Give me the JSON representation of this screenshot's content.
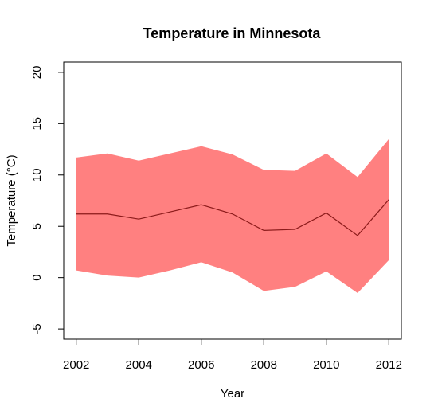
{
  "chart_data": {
    "type": "area",
    "title": "Temperature in Minnesota",
    "xlabel": "Year",
    "ylabel": "Temperature (°C)",
    "xlim": [
      2001.6,
      2012.4
    ],
    "ylim": [
      -6,
      21
    ],
    "x_ticks": [
      2002,
      2004,
      2006,
      2008,
      2010,
      2012
    ],
    "y_ticks": [
      -5,
      0,
      5,
      10,
      15,
      20
    ],
    "grid": false,
    "legend": "none",
    "x": [
      2002,
      2003,
      2004,
      2005,
      2006,
      2007,
      2008,
      2009,
      2010,
      2011,
      2012
    ],
    "series": [
      {
        "role": "band-upper",
        "values": [
          11.7,
          12.1,
          11.4,
          12.1,
          12.8,
          12.0,
          10.5,
          10.4,
          12.1,
          9.8,
          13.5
        ]
      },
      {
        "role": "band-lower",
        "values": [
          0.7,
          0.2,
          0.0,
          0.7,
          1.5,
          0.5,
          -1.3,
          -0.9,
          0.6,
          -1.5,
          1.7
        ]
      },
      {
        "role": "line",
        "values": [
          6.2,
          6.2,
          5.7,
          6.4,
          7.1,
          6.2,
          4.6,
          4.7,
          6.3,
          4.1,
          7.6
        ]
      }
    ],
    "colors": {
      "band": "#ff8080",
      "line": "#8b1a1a"
    }
  }
}
